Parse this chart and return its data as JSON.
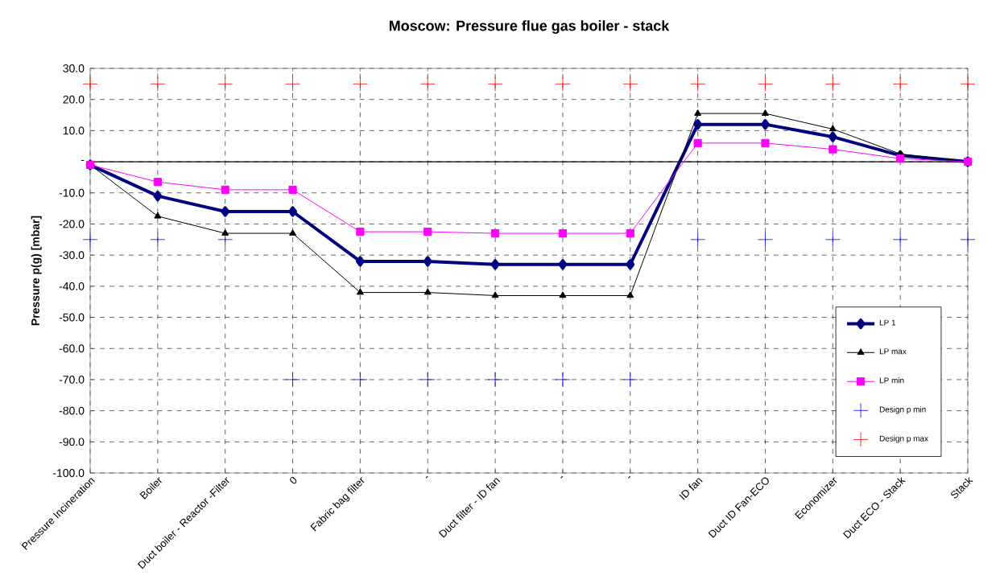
{
  "chart_data": {
    "type": "line",
    "title": "Moscow: Pressure flue gas boiler - stack",
    "ylabel": "Pressure  p(g) [mbar]",
    "categories": [
      "Pressure Incineration",
      "Boiler",
      "Duct boiler - Reactor -Filter",
      "0",
      "Fabric bag filter",
      "-",
      "Duct filter - ID fan",
      "-",
      "-",
      "ID fan",
      "Duct ID Fan-ECO",
      "Economizer",
      "Duct ECO - Stack",
      "Stack"
    ],
    "series": [
      {
        "name": "LP 1",
        "color": "#000080",
        "marker": "diamond",
        "values": [
          -1,
          -11,
          -16,
          -16,
          -32,
          -32,
          -33,
          -33,
          -33,
          12,
          12,
          8,
          2,
          0
        ]
      },
      {
        "name": "LP max",
        "color": "#000000",
        "marker": "triangle",
        "values": [
          -1,
          -17.5,
          -23,
          -23,
          -42,
          -42,
          -43,
          -43,
          -43,
          15.5,
          15.5,
          10.5,
          2.5,
          0
        ]
      },
      {
        "name": "LP min",
        "color": "#ff00ff",
        "marker": "square",
        "values": [
          -1,
          -6.5,
          -9,
          -9,
          -22.5,
          -22.5,
          -23,
          -23,
          -23,
          6,
          6,
          4,
          1,
          0
        ]
      },
      {
        "name": "Design p min",
        "type": "scatter",
        "color": "#0000ff",
        "marker": "cross",
        "values": [
          -25,
          -25,
          -25,
          -70,
          -70,
          -70,
          -70,
          -70,
          -70,
          -25,
          -25,
          -25,
          -25,
          -25
        ]
      },
      {
        "name": "Design p max",
        "type": "scatter",
        "color": "#ff0000",
        "marker": "cross",
        "values": [
          25,
          25,
          25,
          25,
          25,
          25,
          25,
          25,
          25,
          25,
          25,
          25,
          25,
          25
        ]
      }
    ],
    "ylim": [
      -100,
      30
    ],
    "yticks": [
      {
        "value": -100,
        "label": "-100.0"
      },
      {
        "value": -90,
        "label": "-90.0"
      },
      {
        "value": -80,
        "label": "-80.0"
      },
      {
        "value": -70,
        "label": "-70.0"
      },
      {
        "value": -60,
        "label": "-60.0"
      },
      {
        "value": -50,
        "label": "-50.0"
      },
      {
        "value": -40,
        "label": "-40.0"
      },
      {
        "value": -30,
        "label": "-30.0"
      },
      {
        "value": -20,
        "label": "-20.0"
      },
      {
        "value": -10,
        "label": "-10.0"
      },
      {
        "value": 0,
        "label": "-"
      },
      {
        "value": 10,
        "label": "10.0"
      },
      {
        "value": 20,
        "label": "20.0"
      },
      {
        "value": 30,
        "label": "30.0"
      }
    ],
    "ref_lines": [
      {
        "axis": "y",
        "value": 0,
        "color": "#000000"
      }
    ],
    "grid": true,
    "legend": "bottom right"
  }
}
